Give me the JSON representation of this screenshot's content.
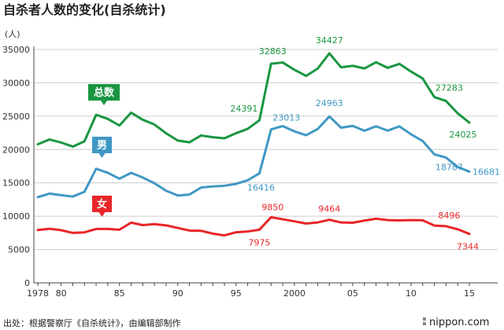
{
  "chart_data": {
    "type": "line",
    "title": "自杀者人数的变化(自杀统计)",
    "unit_label": "(人)",
    "ylim": [
      0,
      35000
    ],
    "y_ticks": [
      0,
      5000,
      10000,
      15000,
      20000,
      25000,
      30000,
      35000
    ],
    "y_tick_labels": [
      "0",
      "5000",
      "10000",
      "15000",
      "20000",
      "25000",
      "30000",
      "35000"
    ],
    "xlim": [
      1978,
      2015
    ],
    "x_ticks": [
      1978,
      1980,
      1985,
      1990,
      1995,
      2000,
      2005,
      2010,
      2015
    ],
    "x_tick_labels": [
      "1978",
      "80",
      "85",
      "90",
      "95",
      "2000",
      "05",
      "10",
      "15"
    ],
    "x": [
      1978,
      1979,
      1980,
      1981,
      1982,
      1983,
      1984,
      1985,
      1986,
      1987,
      1988,
      1989,
      1990,
      1991,
      1992,
      1993,
      1994,
      1995,
      1996,
      1997,
      1998,
      1999,
      2000,
      2001,
      2002,
      2003,
      2004,
      2005,
      2006,
      2007,
      2008,
      2009,
      2010,
      2011,
      2012,
      2013,
      2014,
      2015
    ],
    "series": [
      {
        "name": "总数",
        "color": "#1a9641",
        "values": [
          20788,
          21503,
          21048,
          20434,
          21228,
          25202,
          24596,
          23599,
          25524,
          24460,
          23742,
          22436,
          21346,
          21084,
          22104,
          21851,
          21679,
          22445,
          23104,
          24391,
          32863,
          33048,
          31957,
          31042,
          32143,
          34427,
          32325,
          32552,
          32155,
          33093,
          32249,
          32845,
          31690,
          30651,
          27858,
          27283,
          25427,
          24025
        ]
      },
      {
        "name": "男",
        "color": "#3f98c4",
        "values": [
          12859,
          13386,
          13155,
          12942,
          13654,
          17116,
          16508,
          15624,
          16497,
          15802,
          14934,
          13818,
          13102,
          13242,
          14296,
          14468,
          14560,
          14853,
          15393,
          16416,
          23013,
          23512,
          22727,
          22144,
          23080,
          24963,
          23272,
          23540,
          22813,
          23478,
          22831,
          23472,
          22283,
          21270,
          19273,
          18787,
          17386,
          16681
        ]
      },
      {
        "name": "女",
        "color": "#e8262a",
        "values": [
          7929,
          8117,
          7893,
          7492,
          7574,
          8086,
          8088,
          7975,
          9027,
          8658,
          8808,
          8618,
          8244,
          7842,
          7808,
          7383,
          7119,
          7592,
          7711,
          7975,
          9850,
          9536,
          9230,
          8898,
          9063,
          9464,
          9053,
          9012,
          9342,
          9615,
          9418,
          9373,
          9407,
          9381,
          8585,
          8496,
          8041,
          7344
        ]
      }
    ],
    "data_labels": [
      {
        "series": "总数",
        "x": 1997,
        "text": "24391"
      },
      {
        "series": "总数",
        "x": 1998,
        "text": "32863"
      },
      {
        "series": "总数",
        "x": 2003,
        "text": "34427"
      },
      {
        "series": "总数",
        "x": 2013,
        "text": "27283"
      },
      {
        "series": "总数",
        "x": 2015,
        "text": "24025"
      },
      {
        "series": "男",
        "x": 1997,
        "text": "16416"
      },
      {
        "series": "男",
        "x": 1998,
        "text": "23013"
      },
      {
        "series": "男",
        "x": 2003,
        "text": "24963"
      },
      {
        "series": "男",
        "x": 2013,
        "text": "18787"
      },
      {
        "series": "男",
        "x": 2015,
        "text": "16681"
      },
      {
        "series": "女",
        "x": 1997,
        "text": "7975"
      },
      {
        "series": "女",
        "x": 1998,
        "text": "9850"
      },
      {
        "series": "女",
        "x": 2003,
        "text": "9464"
      },
      {
        "series": "女",
        "x": 2013,
        "text": "8496"
      },
      {
        "series": "女",
        "x": 2015,
        "text": "7344"
      }
    ],
    "series_badges": [
      {
        "series": "总数",
        "text": "总数"
      },
      {
        "series": "男",
        "text": "男"
      },
      {
        "series": "女",
        "text": "女"
      }
    ],
    "grid": true,
    "grid_axis": "y"
  },
  "footer": {
    "source": "出处：根据警察厅《自杀统计》，由编辑部制作",
    "brand": "nippon.com"
  }
}
